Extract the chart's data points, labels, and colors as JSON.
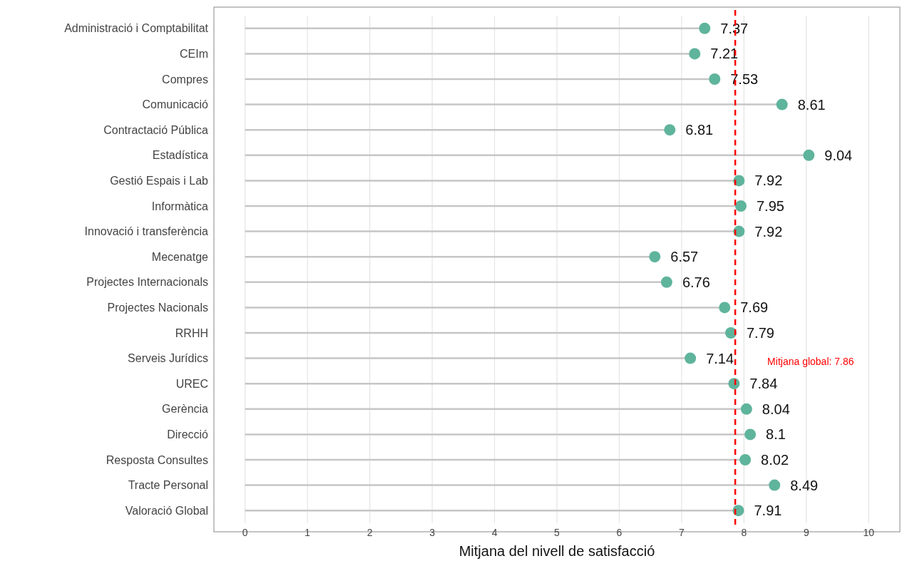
{
  "chart_data": {
    "type": "lollipop",
    "orientation": "horizontal",
    "xlabel": "Mitjana del nivell de satisfacció",
    "categories": [
      "Administració i Comptabilitat",
      "CEIm",
      "Compres",
      "Comunicació",
      "Contractació Pública",
      "Estadística",
      "Gestió Espais i Lab",
      "Informàtica",
      "Innovació i transferència",
      "Mecenatge",
      "Projectes Internacionals",
      "Projectes Nacionals",
      "RRHH",
      "Serveis Jurídics",
      "UREC",
      "Gerència",
      "Direcció",
      "Resposta Consultes",
      "Tracte Personal",
      "Valoració Global"
    ],
    "values": [
      7.37,
      7.21,
      7.53,
      8.61,
      6.81,
      9.04,
      7.92,
      7.95,
      7.92,
      6.57,
      6.76,
      7.69,
      7.79,
      7.14,
      7.84,
      8.04,
      8.1,
      8.02,
      8.49,
      7.91
    ],
    "color": "#5fb49c",
    "data_labels": true,
    "marker": "circle",
    "xlim": [
      -0.5,
      10.5
    ],
    "xticks": [
      0,
      1,
      2,
      3,
      4,
      5,
      6,
      7,
      8,
      9,
      10
    ],
    "grid": "x",
    "ref_lines": [
      {
        "axis": "x",
        "value": 7.86,
        "label": "Mitjana global: 7.86",
        "color": "#ff0000",
        "line_style": "dashed"
      }
    ]
  }
}
